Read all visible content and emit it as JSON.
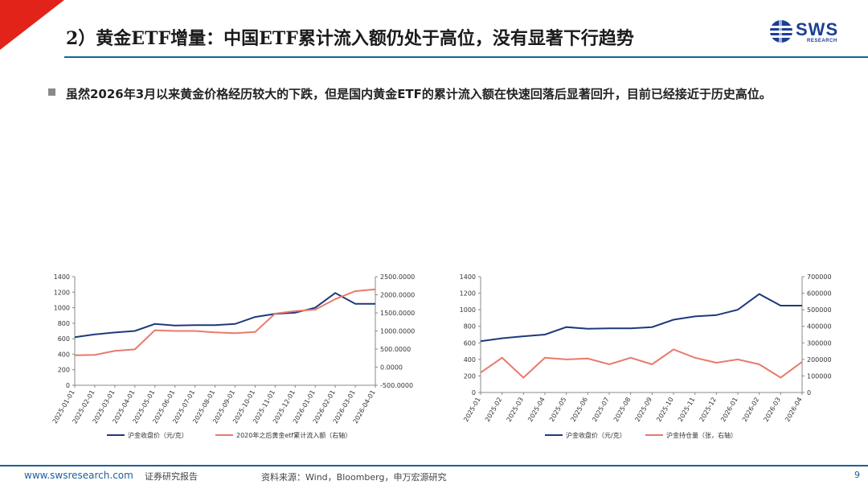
{
  "header": {
    "title": "2）黄金ETF增量：中国ETF累计流入额仍处于高位，没有显著下行趋势",
    "logo_text": "SWS",
    "logo_sub": "RESEARCH"
  },
  "bullet": {
    "text": "虽然2026年3月以来黄金价格经历较大的下跌，但是国内黄金ETF的累计流入额在快速回落后显著回升，目前已经接近于历史高位。"
  },
  "footer": {
    "url": "www.swsresearch.com",
    "report": "证券研究报告",
    "source": "资料来源：Wind，Bloomberg，申万宏源研究",
    "page": "9"
  },
  "colors": {
    "navy": "#1f3a7a",
    "salmon": "#e87a6c",
    "accent": "#0a6d8e",
    "logo": "#1c3f94",
    "triangle": "#e2231a"
  },
  "chart_data": [
    {
      "type": "line",
      "x": [
        "2025-01",
        "2025-02",
        "2025-03",
        "2025-04",
        "2025-05",
        "2025-06",
        "2025-07",
        "2025-08",
        "2025-09",
        "2025-10",
        "2025-11",
        "2025-12",
        "2026-01",
        "2026-02",
        "2026-03",
        "2026-04"
      ],
      "xticks": [
        "2025-01-01",
        "2025-02-01",
        "2025-03-01",
        "2025-04-01",
        "2025-05-01",
        "2025-06-01",
        "2025-07-01",
        "2025-08-01",
        "2025-09-01",
        "2025-10-01",
        "2025-11-01",
        "2025-12-01",
        "2026-01-01",
        "2026-02-01",
        "2026-03-01",
        "2026-04-01"
      ],
      "y_left": {
        "lim": [
          0,
          1400
        ],
        "ticks": [
          "0",
          "200",
          "400",
          "600",
          "800",
          "1000",
          "1200",
          "1400"
        ]
      },
      "y_right": {
        "lim": [
          -500,
          2500
        ],
        "ticks": [
          "-500.0000",
          "0.0000",
          "500.0000",
          "1000.0000",
          "1500.0000",
          "2000.0000",
          "2500.0000"
        ]
      },
      "series": [
        {
          "name": "沪金收盘价（元/克）",
          "axis": "left",
          "color": "#1f3a7a",
          "values": [
            620,
            655,
            680,
            700,
            790,
            770,
            775,
            775,
            790,
            880,
            920,
            935,
            1000,
            1190,
            1050,
            1050
          ]
        },
        {
          "name": "2020年之后黄金etf累计流入额（右轴）",
          "axis": "right",
          "color": "#e87a6c",
          "values": [
            330,
            340,
            450,
            490,
            1020,
            1000,
            1000,
            960,
            940,
            970,
            1480,
            1550,
            1590,
            1880,
            2100,
            2150
          ]
        }
      ]
    },
    {
      "type": "line",
      "x": [
        "2025-01",
        "2025-02",
        "2025-03",
        "2025-04",
        "2025-05",
        "2025-06",
        "2025-07",
        "2025-08",
        "2025-09",
        "2025-10",
        "2025-11",
        "2025-12",
        "2026-01",
        "2026-02",
        "2026-03",
        "2026-04"
      ],
      "xticks": [
        "2025-01",
        "2025-02",
        "2025-03",
        "2025-04",
        "2025-05",
        "2025-06",
        "2025-07",
        "2025-08",
        "2025-09",
        "2025-10",
        "2025-11",
        "2025-12",
        "2026-01",
        "2026-02",
        "2026-03",
        "2026-04"
      ],
      "y_left": {
        "lim": [
          0,
          1400
        ],
        "ticks": [
          "0",
          "200",
          "400",
          "600",
          "800",
          "1000",
          "1200",
          "1400"
        ]
      },
      "y_right": {
        "lim": [
          0,
          700000
        ],
        "ticks": [
          "0",
          "100000",
          "200000",
          "300000",
          "400000",
          "500000",
          "600000",
          "700000"
        ]
      },
      "series": [
        {
          "name": "沪金收盘价（元/克）",
          "axis": "left",
          "color": "#1f3a7a",
          "values": [
            620,
            655,
            680,
            700,
            790,
            770,
            775,
            775,
            790,
            880,
            920,
            935,
            1000,
            1190,
            1050,
            1050
          ]
        },
        {
          "name": "沪金持仓量（张，右轴）",
          "axis": "right",
          "color": "#e87a6c",
          "values": [
            120000,
            210000,
            90000,
            210000,
            200000,
            205000,
            170000,
            210000,
            170000,
            260000,
            210000,
            180000,
            200000,
            170000,
            90000,
            185000
          ]
        }
      ]
    }
  ]
}
